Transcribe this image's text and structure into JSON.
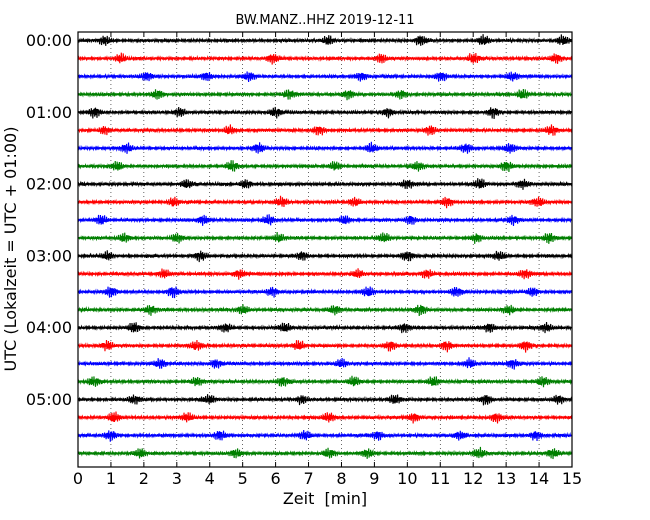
{
  "chart_data": {
    "type": "line",
    "title": "BW.MANZ..HHZ 2019-12-11",
    "xlabel": "Zeit  [min]",
    "ylabel": "UTC (Lokalzeit = UTC + 01:00)",
    "xlim": [
      0,
      15
    ],
    "x_ticks": [
      "0",
      "1",
      "2",
      "3",
      "4",
      "5",
      "6",
      "7",
      "8",
      "9",
      "10",
      "11",
      "12",
      "13",
      "14",
      "15"
    ],
    "y_ticks": [
      {
        "label": "00:00",
        "row": 0
      },
      {
        "label": "01:00",
        "row": 4
      },
      {
        "label": "02:00",
        "row": 8
      },
      {
        "label": "03:00",
        "row": 12
      },
      {
        "label": "04:00",
        "row": 16
      },
      {
        "label": "05:00",
        "row": 20
      }
    ],
    "grid": "vertical-dotted",
    "trace_minutes_per_row": 15,
    "row_count": 24,
    "trace_colors": [
      "#000000",
      "#ff0000",
      "#0000ff",
      "#007f00"
    ],
    "rows": [
      {
        "start": "00:00",
        "bursts": [
          0.8,
          7.6,
          10.4,
          12.3,
          14.7
        ]
      },
      {
        "start": "00:15",
        "bursts": [
          1.3,
          5.9,
          9.2,
          12.0,
          14.5
        ]
      },
      {
        "start": "00:30",
        "bursts": [
          2.1,
          3.9,
          5.2,
          8.6,
          11.0,
          13.2
        ]
      },
      {
        "start": "00:45",
        "bursts": [
          2.4,
          6.4,
          8.2,
          9.8,
          13.5
        ]
      },
      {
        "start": "01:00",
        "bursts": [
          0.5,
          3.1,
          6.0,
          9.4,
          12.6
        ]
      },
      {
        "start": "01:15",
        "bursts": [
          0.8,
          4.6,
          7.3,
          10.7,
          14.4
        ]
      },
      {
        "start": "01:30",
        "bursts": [
          1.5,
          5.5,
          8.9,
          11.8,
          13.1
        ]
      },
      {
        "start": "01:45",
        "bursts": [
          1.2,
          4.7,
          7.8,
          10.3,
          13.0
        ]
      },
      {
        "start": "02:00",
        "bursts": [
          3.3,
          5.1,
          10.0,
          12.2,
          13.5
        ]
      },
      {
        "start": "02:15",
        "bursts": [
          2.9,
          6.2,
          8.4,
          11.2,
          14.0
        ]
      },
      {
        "start": "02:30",
        "bursts": [
          0.7,
          3.8,
          5.8,
          8.1,
          10.1,
          13.2
        ]
      },
      {
        "start": "02:45",
        "bursts": [
          1.4,
          3.0,
          6.1,
          9.3,
          12.1,
          14.3
        ]
      },
      {
        "start": "03:00",
        "bursts": [
          0.9,
          3.7,
          6.8,
          10.0,
          12.8
        ]
      },
      {
        "start": "03:15",
        "bursts": [
          2.6,
          4.9,
          8.5,
          10.6,
          13.6
        ]
      },
      {
        "start": "03:30",
        "bursts": [
          1.0,
          2.9,
          5.9,
          8.8,
          11.5,
          13.8
        ]
      },
      {
        "start": "03:45",
        "bursts": [
          2.2,
          5.0,
          7.8,
          10.4,
          13.1
        ]
      },
      {
        "start": "04:00",
        "bursts": [
          1.7,
          4.5,
          6.3,
          9.9,
          12.5,
          14.2
        ]
      },
      {
        "start": "04:15",
        "bursts": [
          0.9,
          3.6,
          6.7,
          9.5,
          11.2,
          13.6
        ]
      },
      {
        "start": "04:30",
        "bursts": [
          2.5,
          4.2,
          8.0,
          11.9,
          13.2
        ]
      },
      {
        "start": "04:45",
        "bursts": [
          0.5,
          3.6,
          6.2,
          8.4,
          10.8,
          14.1
        ]
      },
      {
        "start": "05:00",
        "bursts": [
          1.7,
          4.0,
          6.8,
          9.6,
          12.4,
          14.6
        ]
      },
      {
        "start": "05:15",
        "bursts": [
          1.1,
          3.3,
          7.6,
          10.2,
          12.7
        ]
      },
      {
        "start": "05:30",
        "bursts": [
          1.0,
          4.3,
          6.9,
          9.1,
          11.6,
          13.9
        ]
      },
      {
        "start": "05:45",
        "bursts": [
          1.9,
          4.8,
          7.6,
          8.8,
          12.2,
          14.4
        ]
      }
    ]
  }
}
